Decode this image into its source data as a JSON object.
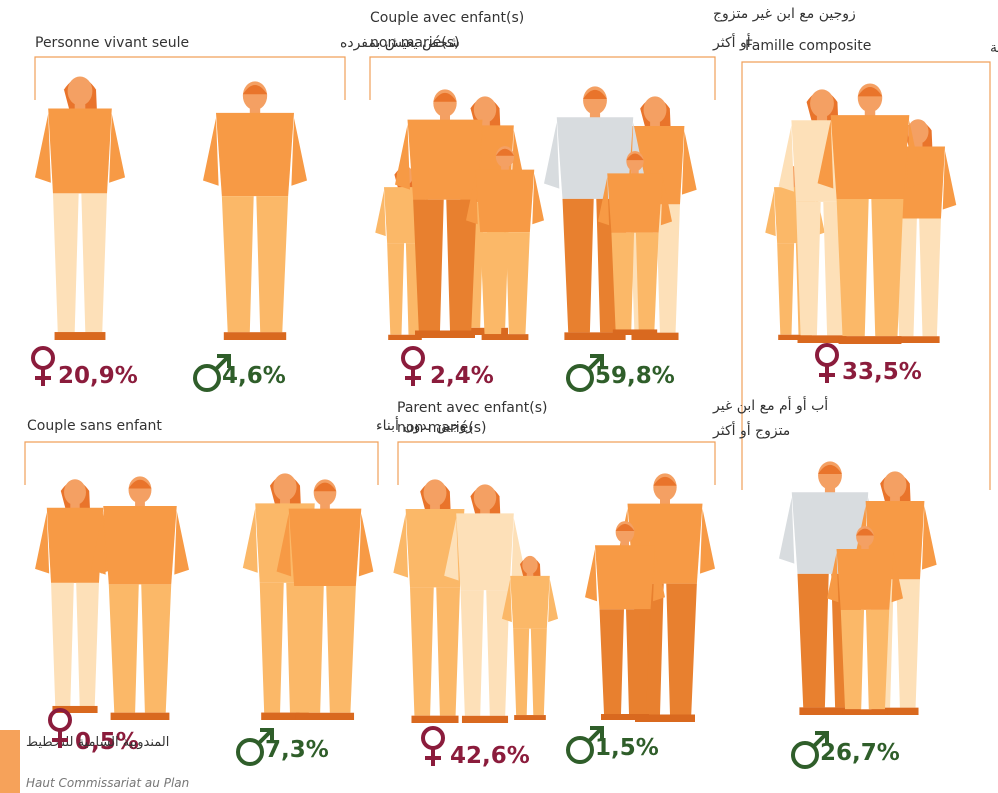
{
  "panels": [
    {
      "fr": [
        "Personne vivant seule"
      ],
      "ar": [
        "شخص يعيش بمفرده"
      ],
      "female": "20,9%",
      "male": "4,6%"
    },
    {
      "fr": [
        "Couple avec enfant(s)",
        "non marié(s)"
      ],
      "ar": [
        "زوجين مع ابن غير متزوج",
        "أو أكثر"
      ],
      "female": "2,4%",
      "male": "59,8%"
    },
    {
      "fr": [
        "Famille composite"
      ],
      "ar": [
        "عائلة مركبة"
      ],
      "female": "33,5%",
      "male": "26,7%"
    },
    {
      "fr": [
        "Couple sans enfant"
      ],
      "ar": [
        "زوجين بدون أبناء"
      ],
      "female": "0,5%",
      "male": "7,3%"
    },
    {
      "fr": [
        "Parent avec enfant(s)",
        "non marié(s)"
      ],
      "ar": [
        "أب أو أم مع ابن غير",
        "متزوج أو أكثر"
      ],
      "female": "42,6%",
      "male": "1,5%"
    }
  ],
  "footer": {
    "ar": "المندوبية السامية للتخطيط",
    "fr": "Haut Commissariat au Plan"
  }
}
